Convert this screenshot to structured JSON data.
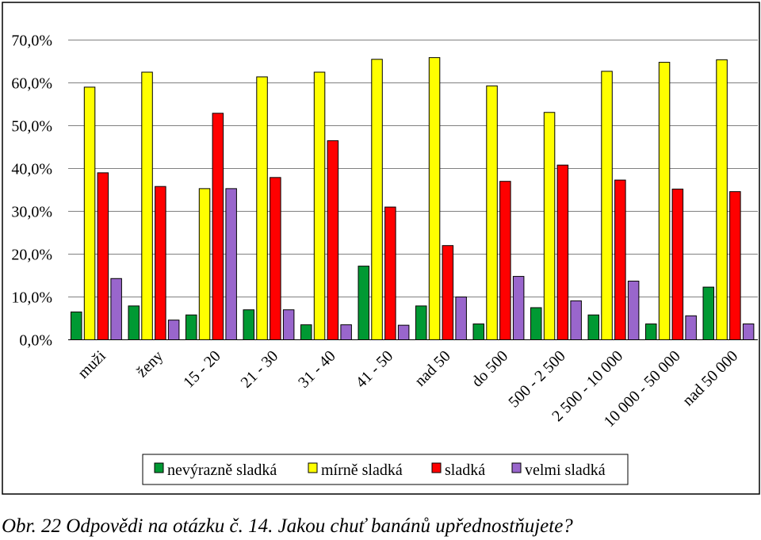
{
  "chart_data": {
    "type": "bar",
    "categories": [
      "muži",
      "ženy",
      "15 - 20",
      "21 - 30",
      "31 - 40",
      "41 - 50",
      "nad 50",
      "do 500",
      "500 - 2 500",
      "2 500 - 10 000",
      "10 000 - 50 000",
      "nad 50 000"
    ],
    "series": [
      {
        "name": "nevýrazně sladká",
        "color": "#009933",
        "values": [
          6.5,
          7.9,
          5.8,
          7.0,
          3.5,
          17.2,
          7.9,
          3.7,
          7.5,
          5.8,
          3.7,
          12.3
        ]
      },
      {
        "name": "mírně sladká",
        "color": "#ffff00",
        "values": [
          59.0,
          62.5,
          35.3,
          61.4,
          62.5,
          65.5,
          65.9,
          59.3,
          53.1,
          62.7,
          64.8,
          65.4
        ]
      },
      {
        "name": "sladká",
        "color": "#ff0000",
        "values": [
          39.0,
          35.8,
          52.9,
          37.9,
          46.5,
          31.0,
          22.0,
          37.0,
          40.8,
          37.3,
          35.2,
          34.6
        ]
      },
      {
        "name": "velmi sladká",
        "color": "#9966cc",
        "values": [
          14.3,
          4.6,
          35.3,
          7.0,
          3.5,
          3.4,
          10.0,
          14.8,
          9.1,
          13.7,
          5.6,
          3.7
        ]
      }
    ],
    "yticks": [
      "0,0%",
      "10,0%",
      "20,0%",
      "30,0%",
      "40,0%",
      "50,0%",
      "60,0%",
      "70,0%"
    ],
    "ylim": [
      0,
      70
    ],
    "grid": true,
    "legend_position": "bottom"
  },
  "caption": "Obr. 22 Odpovědi na otázku č. 14. Jakou chuť banánů upřednostňujete?"
}
